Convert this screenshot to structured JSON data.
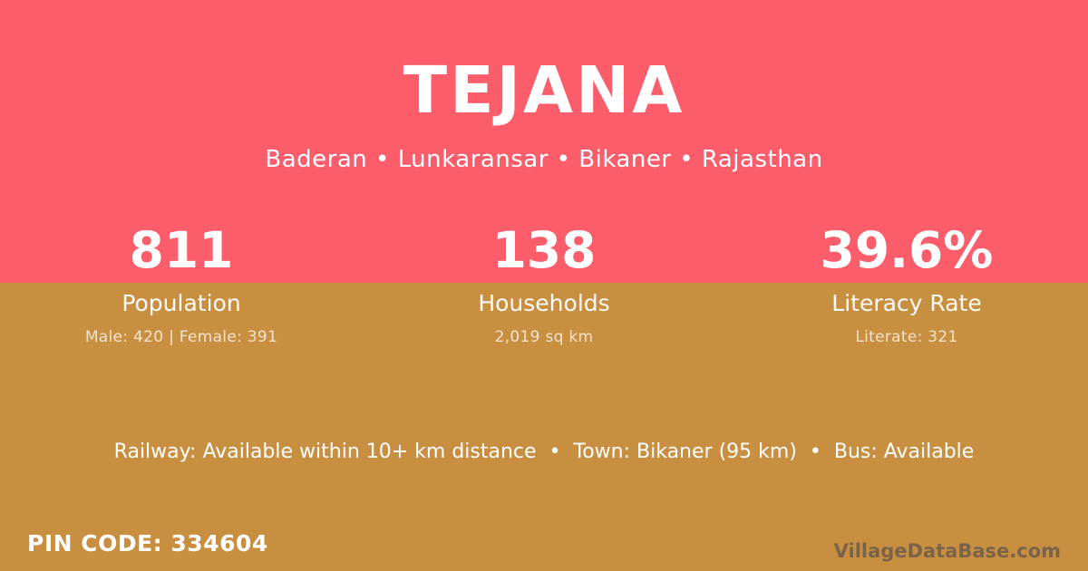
{
  "theme": {
    "hero_background": "#FC5D6B",
    "body_background": "#C98F41",
    "text_color": "#FFFFFF",
    "watermark_color": "rgba(55,65,81,0.55)"
  },
  "hero": {
    "title": "TEJANA",
    "breadcrumb": "Baderan • Lunkaransar • Bikaner • Rajasthan"
  },
  "stats": [
    {
      "value": "811",
      "label": "Population",
      "detail": "Male: 420 | Female: 391"
    },
    {
      "value": "138",
      "label": "Households",
      "detail": "2,019 sq km"
    },
    {
      "value": "39.6%",
      "label": "Literacy Rate",
      "detail": "Literate: 321"
    }
  ],
  "transport": {
    "line": "Railway: Available within 10+ km distance  •  Town: Bikaner (95 km)  •  Bus: Available"
  },
  "footer": {
    "pin_label": "PIN CODE:",
    "pin_value": "334604",
    "watermark": "VillageDataBase.com"
  }
}
